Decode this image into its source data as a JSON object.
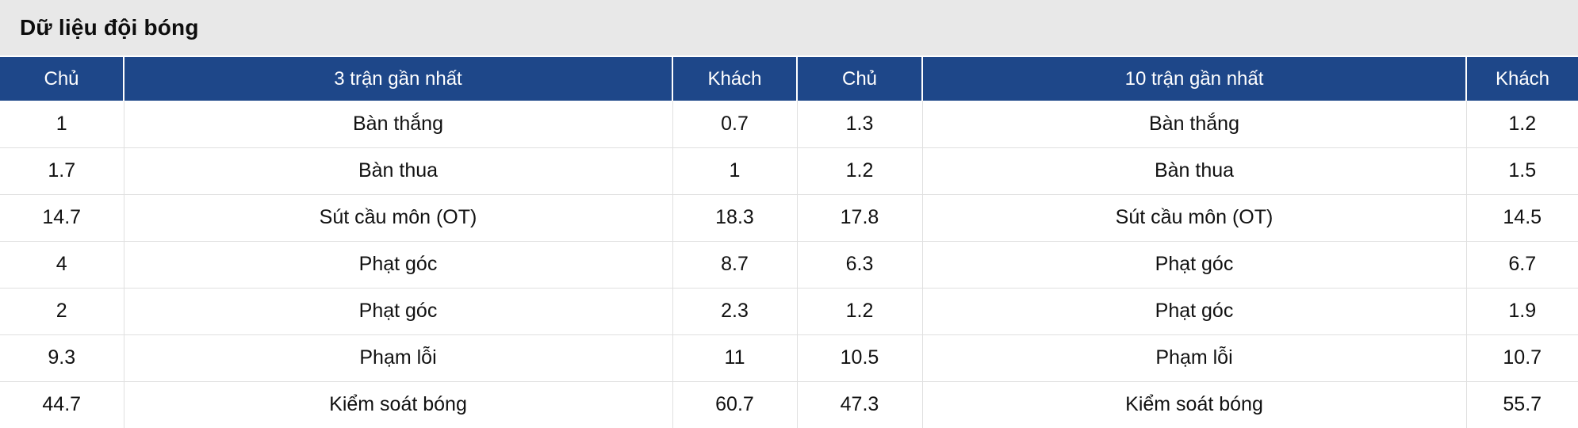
{
  "page": {
    "title": "Dữ liệu đội bóng"
  },
  "colors": {
    "header_bg": "#1e4789",
    "header_text": "#ffffff",
    "title_bar_bg": "#e8e8e8",
    "row_border": "#e0e0e0",
    "body_text": "#111111"
  },
  "table": {
    "columns": [
      {
        "key": "home3",
        "label": "Chủ"
      },
      {
        "key": "stat3",
        "label": "3 trận gần nhất"
      },
      {
        "key": "away3",
        "label": "Khách"
      },
      {
        "key": "home10",
        "label": "Chủ"
      },
      {
        "key": "stat10",
        "label": "10 trận gần nhất"
      },
      {
        "key": "away10",
        "label": "Khách"
      }
    ],
    "rows": [
      [
        "1",
        "Bàn thắng",
        "0.7",
        "1.3",
        "Bàn thắng",
        "1.2"
      ],
      [
        "1.7",
        "Bàn thua",
        "1",
        "1.2",
        "Bàn thua",
        "1.5"
      ],
      [
        "14.7",
        "Sút cầu môn (OT)",
        "18.3",
        "17.8",
        "Sút cầu môn (OT)",
        "14.5"
      ],
      [
        "4",
        "Phạt góc",
        "8.7",
        "6.3",
        "Phạt góc",
        "6.7"
      ],
      [
        "2",
        "Phạt góc",
        "2.3",
        "1.2",
        "Phạt góc",
        "1.9"
      ],
      [
        "9.3",
        "Phạm lỗi",
        "11",
        "10.5",
        "Phạm lỗi",
        "10.7"
      ],
      [
        "44.7",
        "Kiểm soát bóng",
        "60.7",
        "47.3",
        "Kiểm soát bóng",
        "55.7"
      ]
    ]
  }
}
